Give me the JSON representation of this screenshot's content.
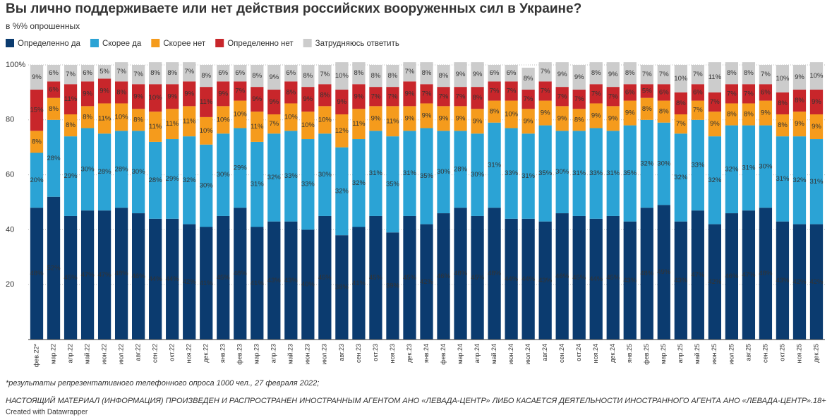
{
  "chart_data": {
    "type": "stacked-bar",
    "title": "Вы лично поддерживаете или нет действия российских вооруженных сил в Украине?",
    "subtitle": "в %% опрошенных",
    "categories": [
      "фев.22*",
      "мар.22",
      "апр.22",
      "май.22",
      "июн.22",
      "июл.22",
      "авг.22",
      "сен.22",
      "окт.22",
      "ноя.22",
      "дек.22",
      "янв.23",
      "фев.23",
      "мар.23",
      "апр.23",
      "май.23",
      "июн.23",
      "июл.23",
      "авг.23",
      "сен.23",
      "окт.23",
      "ноя.23",
      "дек.23",
      "янв.24",
      "фев.24",
      "мар.24",
      "апр.24",
      "май.24",
      "июн.24",
      "июл.24",
      "авг.24",
      "сен.24",
      "окт.24",
      "ноя.24",
      "дек.24",
      "янв.25",
      "фев.25",
      "мар.25",
      "апр.25",
      "май.25",
      "июн.25",
      "июл.25",
      "авг.25",
      "сен.25",
      "окт.25",
      "ноя.25",
      "дек.25"
    ],
    "series": [
      {
        "name": "Определенно да",
        "color": "#0b3b6f",
        "values": [
          48,
          52,
          45,
          47,
          47,
          48,
          46,
          44,
          44,
          42,
          41,
          45,
          48,
          41,
          43,
          43,
          40,
          45,
          38,
          41,
          45,
          39,
          45,
          42,
          46,
          48,
          45,
          48,
          44,
          44,
          43,
          46,
          45,
          44,
          45,
          43,
          48,
          49,
          43,
          47,
          42,
          46,
          47,
          48,
          43,
          42,
          42
        ],
        "value_labels": [
          "48%",
          "52%",
          "45%",
          "47%",
          "47%",
          "48%",
          "46%",
          "44%",
          "44%",
          "42%",
          "41%",
          "45%",
          "48%",
          "41%",
          "43%",
          "43%",
          "40%",
          "45%",
          "38%",
          "41%",
          "45%",
          "39%",
          "45%",
          "42%",
          "46%",
          "48%",
          "45%",
          "48%",
          "44%",
          "44%",
          "43%",
          "46%",
          "45%",
          "44%",
          "45%",
          "43%",
          "48%",
          "49%",
          "43%",
          "47%",
          "42%",
          "46%",
          "47%",
          "48%",
          "43%",
          "42%",
          "42%"
        ]
      },
      {
        "name": "Скорее да",
        "color": "#2ba3d5",
        "values": [
          20,
          28,
          29,
          30,
          28,
          28,
          30,
          28,
          29,
          32,
          30,
          30,
          29,
          31,
          32,
          33,
          33,
          30,
          32,
          32,
          31,
          35,
          31,
          35,
          30,
          28,
          30,
          31,
          33,
          31,
          35,
          30,
          31,
          33,
          31,
          35,
          32,
          30,
          32,
          33,
          32,
          32,
          31,
          30,
          31,
          32,
          31
        ],
        "value_labels": [
          "20%",
          "28%",
          "29%",
          "30%",
          "28%",
          "28%",
          "30%",
          "28%",
          "29%",
          "32%",
          "30%",
          "30%",
          "29%",
          "31%",
          "32%",
          "33%",
          "33%",
          "30%",
          "32%",
          "32%",
          "31%",
          "35%",
          "31%",
          "35%",
          "30%",
          "28%",
          "30%",
          "31%",
          "33%",
          "31%",
          "35%",
          "30%",
          "31%",
          "33%",
          "31%",
          "35%",
          "32%",
          "30%",
          "32%",
          "33%",
          "32%",
          "32%",
          "31%",
          "30%",
          "31%",
          "32%",
          "31%"
        ]
      },
      {
        "name": "Скорее нет",
        "color": "#f59b1c",
        "values": [
          8,
          8,
          8,
          8,
          11,
          10,
          8,
          11,
          11,
          11,
          10,
          10,
          10,
          11,
          7,
          10,
          10,
          10,
          12,
          11,
          9,
          11,
          9,
          9,
          9,
          9,
          9,
          8,
          10,
          9,
          9,
          9,
          8,
          9,
          9,
          9,
          8,
          8,
          7,
          7,
          9,
          8,
          8,
          9,
          8,
          9,
          9
        ],
        "value_labels": [
          "8%",
          "8%",
          "8%",
          "8%",
          "11%",
          "10%",
          "8%",
          "11%",
          "11%",
          "11%",
          "10%",
          "10%",
          "10%",
          "11%",
          "7%",
          "10%",
          "10%",
          "10%",
          "12%",
          "11%",
          "9%",
          "11%",
          "9%",
          "9%",
          "9%",
          "9%",
          "9%",
          "8%",
          "10%",
          "9%",
          "9%",
          "9%",
          "8%",
          "9%",
          "9%",
          "9%",
          "8%",
          "8%",
          "7%",
          "7%",
          "9%",
          "8%",
          "8%",
          "9%",
          "8%",
          "9%",
          "9%"
        ]
      },
      {
        "name": "Определенно нет",
        "color": "#c8262b",
        "values": [
          15,
          6,
          11,
          9,
          9,
          8,
          9,
          10,
          9,
          9,
          11,
          9,
          7,
          9,
          9,
          8,
          9,
          8,
          9,
          9,
          7,
          7,
          9,
          7,
          7,
          7,
          8,
          7,
          7,
          7,
          7,
          7,
          7,
          7,
          7,
          6,
          5,
          6,
          8,
          6,
          7,
          7,
          7,
          6,
          8,
          8,
          9
        ],
        "value_labels": [
          "15%",
          "6%",
          "11%",
          "9%",
          "9%",
          "8%",
          "9%",
          "10%",
          "9%",
          "9%",
          "11%",
          "9%",
          "7%",
          "9%",
          "9%",
          "8%",
          "9%",
          "8%",
          "9%",
          "9%",
          "7%",
          "7%",
          "9%",
          "7%",
          "7%",
          "7%",
          "8%",
          "7%",
          "7%",
          "7%",
          "7%",
          "7%",
          "7%",
          "7%",
          "7%",
          "6%",
          "5%",
          "6%",
          "8%",
          "6%",
          "7%",
          "7%",
          "7%",
          "6%",
          "8%",
          "8%",
          "9%"
        ]
      },
      {
        "name": "Затрудняюсь ответить",
        "color": "#cccccc",
        "values": [
          9,
          6,
          7,
          6,
          5,
          7,
          7,
          8,
          8,
          7,
          8,
          6,
          6,
          8,
          9,
          6,
          8,
          7,
          10,
          8,
          8,
          8,
          7,
          8,
          8,
          9,
          9,
          6,
          6,
          8,
          7,
          9,
          9,
          8,
          9,
          8,
          7,
          7,
          10,
          7,
          11,
          8,
          8,
          7,
          10,
          9,
          10
        ],
        "value_labels": [
          "9%",
          "6%",
          "7%",
          "6%",
          "5%",
          "7%",
          "7%",
          "8%",
          "8%",
          "7%",
          "8%",
          "6%",
          "6%",
          "8%",
          "9%",
          "6%",
          "8%",
          "7%",
          "10%",
          "8%",
          "8%",
          "8%",
          "7%",
          "8%",
          "8%",
          "9%",
          "9%",
          "6%",
          "6%",
          "8%",
          "7%",
          "9%",
          "9%",
          "8%",
          "9%",
          "8%",
          "7%",
          "7%",
          "10%",
          "7%",
          "11%",
          "8%",
          "8%",
          "7%",
          "10%",
          "9%",
          "10%"
        ]
      }
    ],
    "ylim": [
      0,
      100
    ],
    "yticks": [
      20,
      40,
      60,
      80,
      {
        "value": 100,
        "label": "100%"
      }
    ],
    "grid": true,
    "footnote": "*результаты репрезентативного телефонного опроса 1000 чел., 27 февраля 2022;",
    "notice": "НАСТОЯЩИЙ МАТЕРИАЛ (ИНФОРМАЦИЯ) ПРОИЗВЕДЕН И РАСПРОСТРАНЕН ИНОСТРАННЫМ АГЕНТОМ АНО «ЛЕВАДА-ЦЕНТР» ЛИБО КАСАЕТСЯ ДЕЯТЕЛЬНОСТИ ИНОСТРАННОГО АГЕНТА АНО «ЛЕВАДА-ЦЕНТР».18+",
    "credit": "Created with Datawrapper"
  }
}
